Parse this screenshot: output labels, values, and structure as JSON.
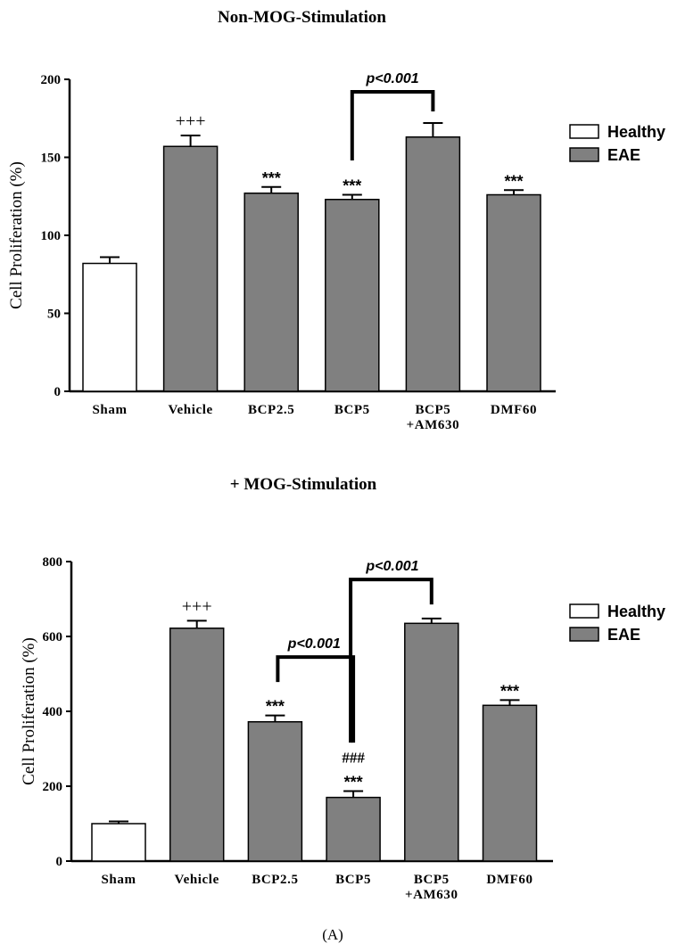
{
  "figure_label": "(A)",
  "chart_data": [
    {
      "type": "bar",
      "title": "Non-MOG-Stimulation",
      "ylabel": "Cell Proliferation (%)",
      "xlabel": "",
      "ylim": [
        0,
        200
      ],
      "yticks": [
        0,
        50,
        100,
        150,
        200
      ],
      "tick_labels": [
        "0",
        "50",
        "100",
        "150",
        "200"
      ],
      "categories": [
        "Sham",
        "Vehicle",
        "BCP2.5",
        "BCP5",
        "BCP5\n+AM630",
        "DMF60"
      ],
      "category_lines": [
        [
          "Sham"
        ],
        [
          "Vehicle"
        ],
        [
          "BCP2.5"
        ],
        [
          "BCP5"
        ],
        [
          "BCP5",
          "+AM630"
        ],
        [
          "DMF60"
        ]
      ],
      "values": [
        82,
        157,
        127,
        123,
        163,
        126
      ],
      "errors": [
        4,
        7,
        4,
        3,
        9,
        3
      ],
      "groups": [
        "Healthy",
        "EAE",
        "EAE",
        "EAE",
        "EAE",
        "EAE"
      ],
      "annotations": [
        {
          "bar": 1,
          "lines": [
            "+++"
          ]
        },
        {
          "bar": 2,
          "lines": [
            "***"
          ]
        },
        {
          "bar": 3,
          "lines": [
            "***"
          ]
        },
        {
          "bar": 5,
          "lines": [
            "***"
          ]
        }
      ],
      "brackets": [
        {
          "from": 3,
          "to": 4,
          "y": 192,
          "label": "p<0.001"
        }
      ],
      "legend": {
        "position": "right",
        "entries": [
          {
            "label": "Healthy",
            "color": "#ffffff"
          },
          {
            "label": "EAE",
            "color": "#808080"
          }
        ]
      },
      "grid": false
    },
    {
      "type": "bar",
      "title": "+ MOG-Stimulation",
      "ylabel": "Cell Proliferation (%)",
      "xlabel": "",
      "ylim": [
        0,
        800
      ],
      "yticks": [
        0,
        200,
        400,
        600,
        800
      ],
      "tick_labels": [
        "0",
        "200",
        "400",
        "600",
        "800"
      ],
      "categories": [
        "Sham",
        "Vehicle",
        "BCP2.5",
        "BCP5",
        "BCP5\n+AM630",
        "DMF60"
      ],
      "category_lines": [
        [
          "Sham"
        ],
        [
          "Vehicle"
        ],
        [
          "BCP2.5"
        ],
        [
          "BCP5"
        ],
        [
          "BCP5",
          "+AM630"
        ],
        [
          "DMF60"
        ]
      ],
      "values": [
        100,
        622,
        372,
        170,
        635,
        416
      ],
      "errors": [
        6,
        20,
        17,
        17,
        13,
        14
      ],
      "groups": [
        "Healthy",
        "EAE",
        "EAE",
        "EAE",
        "EAE",
        "EAE"
      ],
      "annotations": [
        {
          "bar": 1,
          "lines": [
            "+++"
          ]
        },
        {
          "bar": 2,
          "lines": [
            "***"
          ]
        },
        {
          "bar": 3,
          "lines": [
            "###",
            "***"
          ]
        },
        {
          "bar": 5,
          "lines": [
            "***"
          ]
        }
      ],
      "brackets": [
        {
          "from": 2,
          "to": 3,
          "y": 545,
          "label": "p<0.001"
        },
        {
          "from": 3,
          "to": 4,
          "y": 752,
          "label": "p<0.001"
        }
      ],
      "legend": {
        "position": "right",
        "entries": [
          {
            "label": "Healthy",
            "color": "#ffffff"
          },
          {
            "label": "EAE",
            "color": "#808080"
          }
        ]
      },
      "grid": false
    }
  ]
}
